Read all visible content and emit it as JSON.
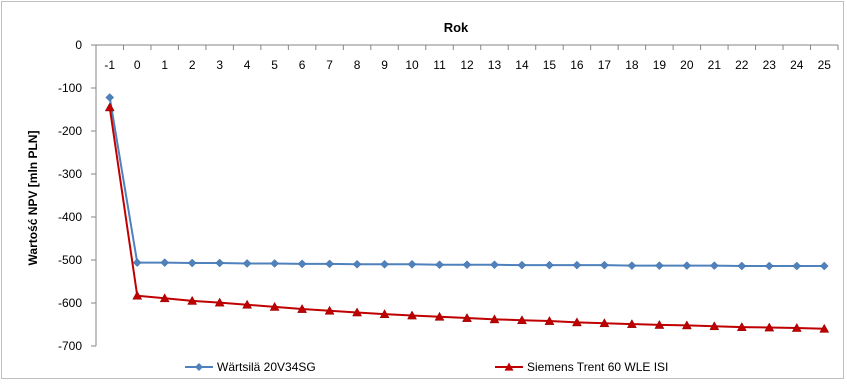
{
  "chart_data": {
    "type": "line",
    "title": "Rok",
    "xlabel": "Rok",
    "ylabel": "Wartość NPV [mln PLN]",
    "x": [
      -1,
      0,
      1,
      2,
      3,
      4,
      5,
      6,
      7,
      8,
      9,
      10,
      11,
      12,
      13,
      14,
      15,
      16,
      17,
      18,
      19,
      20,
      21,
      22,
      23,
      24,
      25
    ],
    "ylim": [
      -700,
      0
    ],
    "yticks": [
      0,
      -100,
      -200,
      -300,
      -400,
      -500,
      -600,
      -700
    ],
    "grid": false,
    "legend_position": "bottom",
    "series": [
      {
        "name": "Wärtsilä 20V34SG",
        "color": "#4f81bd",
        "marker": "diamond",
        "values": [
          -122,
          -506,
          -506,
          -507,
          -507,
          -508,
          -508,
          -509,
          -509,
          -510,
          -510,
          -510,
          -511,
          -511,
          -511,
          -512,
          -512,
          -512,
          -512,
          -513,
          -513,
          -513,
          -513,
          -514,
          -514,
          -514,
          -514
        ]
      },
      {
        "name": "Siemens Trent 60 WLE ISI",
        "color": "#c00000",
        "marker": "triangle",
        "values": [
          -145,
          -583,
          -589,
          -595,
          -599,
          -604,
          -609,
          -614,
          -618,
          -622,
          -626,
          -629,
          -632,
          -635,
          -638,
          -640,
          -642,
          -645,
          -647,
          -649,
          -651,
          -652,
          -654,
          -656,
          -657,
          -658,
          -660
        ]
      }
    ]
  }
}
